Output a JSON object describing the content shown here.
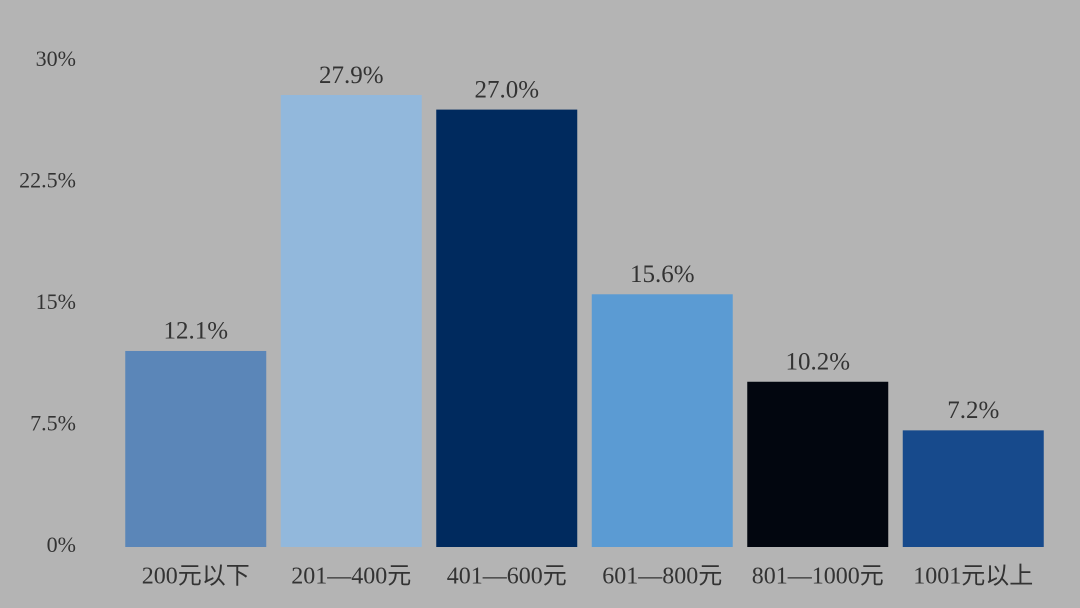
{
  "chart_data": {
    "type": "bar",
    "categories": [
      "200元以下",
      "201—400元",
      "401—600元",
      "601—800元",
      "801—1000元",
      "1001元以上"
    ],
    "values": [
      12.1,
      27.9,
      27.0,
      15.6,
      10.2,
      7.2
    ],
    "value_labels": [
      "12.1%",
      "27.9%",
      "27.0%",
      "15.6%",
      "10.2%",
      "7.2%"
    ],
    "colors": [
      "#5b86b8",
      "#92b8dc",
      "#002a5e",
      "#5b9bd3",
      "#02060f",
      "#174a8c"
    ],
    "ylim": [
      0,
      30
    ],
    "yticks": [
      {
        "value": 0,
        "label": "0%"
      },
      {
        "value": 7.5,
        "label": "7.5%"
      },
      {
        "value": 15,
        "label": "15%"
      },
      {
        "value": 22.5,
        "label": "22.5%"
      },
      {
        "value": 30,
        "label": "30%"
      }
    ],
    "grid": false
  }
}
